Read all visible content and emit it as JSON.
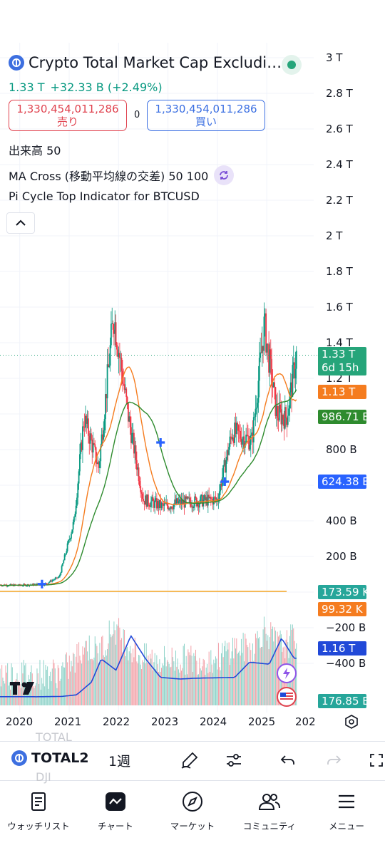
{
  "header": {
    "title": "Crypto Total Market Cap Excludi…",
    "price": "1.33 T",
    "change": "+32.33 B (+2.49%)",
    "sell_value": "1,330,454,011,286",
    "sell_label": "売り",
    "buy_value": "1,330,454,011,286",
    "buy_label": "買い",
    "spread": "0"
  },
  "indicators": {
    "volume": "出来高 50",
    "ma_cross": "MA Cross (移動平均線の交差) 50 100",
    "pi_cycle": "Pi Cycle Top Indicator for BTCUSD"
  },
  "price_axis": [
    "3 T",
    "2.8 T",
    "2.6 T",
    "2.4 T",
    "2.2 T",
    "2 T",
    "1.8 T",
    "1.6 T",
    "1.4 T",
    "1.2 T",
    "800 B",
    "400 B",
    "200 B",
    "−200 B",
    "−400 B"
  ],
  "tags": {
    "last_price": "1.33 T",
    "countdown": "6d 15h",
    "pi_line": "1.13 T",
    "ma_long": "986.71 B",
    "ma_short": "624.38 B",
    "volume_a": "173.59 K",
    "volume_b": "99.32 K",
    "volume_ma": "1.16 T",
    "volume_c": "176.85 B"
  },
  "time_axis": [
    "2020",
    "2021",
    "2022",
    "2023",
    "2024",
    "2025",
    "202"
  ],
  "colors": {
    "up": "#089981",
    "down": "#f23645",
    "ma_short": "#f57c1f",
    "ma_long": "#2e8b2e",
    "cross": "#2962ff",
    "volume_ma": "#2149d8"
  },
  "chart_data": {
    "type": "line",
    "x": [
      2019.6,
      2020.0,
      2020.5,
      2020.8,
      2021.1,
      2021.3,
      2021.6,
      2021.9,
      2022.2,
      2022.5,
      2022.9,
      2023.2,
      2023.6,
      2024.0,
      2024.3,
      2024.7,
      2024.95,
      2025.2,
      2025.4,
      2025.6
    ],
    "series": [
      {
        "values": [
          40,
          38,
          45,
          85,
          400,
          980,
          700,
          1560,
          980,
          520,
          480,
          500,
          510,
          520,
          900,
          850,
          1500,
          1000,
          980,
          1330
        ]
      }
    ],
    "ylim": [
      -500,
      3000
    ]
  },
  "toolbar": {
    "ghost_top": "TOTAL",
    "symbol": "TOTAL2",
    "ghost_bottom": "DJI",
    "interval": "1週"
  },
  "nav": {
    "watchlist": "ウォッチリスト",
    "chart": "チャート",
    "market": "マーケット",
    "community": "コミュニティ",
    "menu": "メニュー"
  }
}
